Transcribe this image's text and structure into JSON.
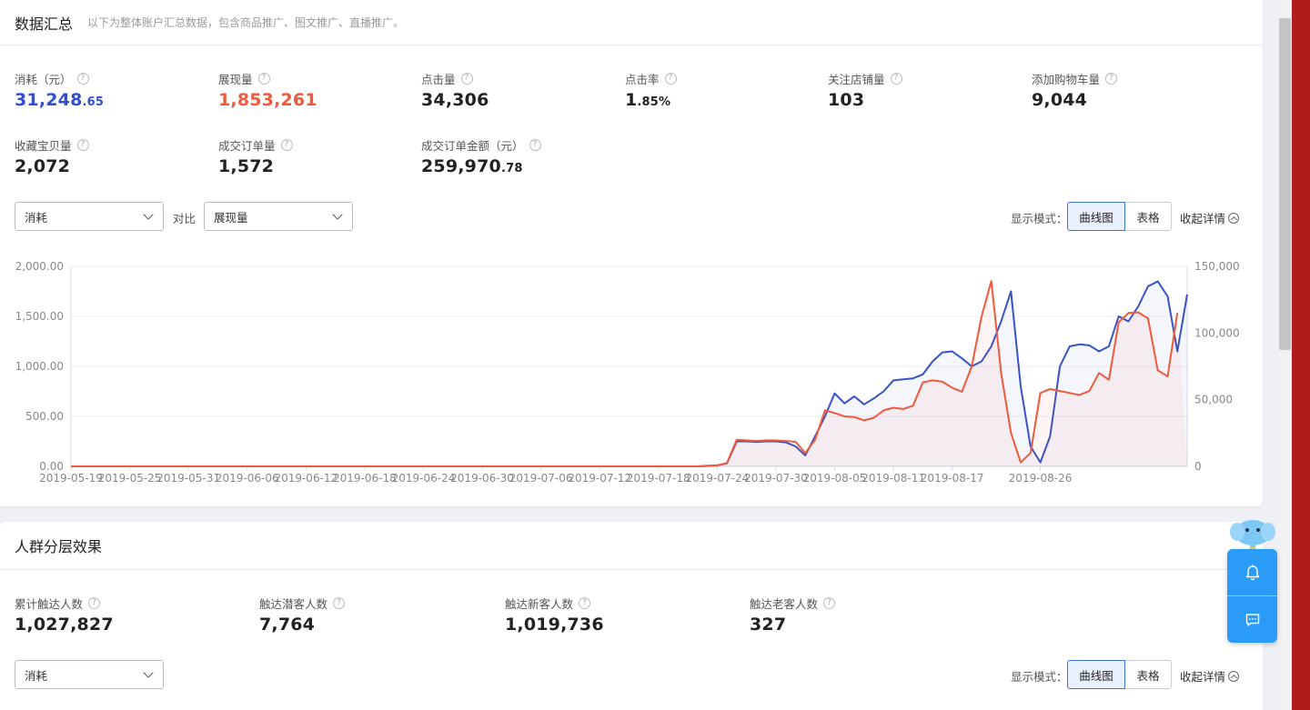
{
  "summary": {
    "title": "数据汇总",
    "subtitle": "以下为整体账户汇总数据，包含商品推广、图文推广、直播推广。",
    "metrics": [
      {
        "label": "消耗（元）",
        "int": "31,248",
        "dec": ".65"
      },
      {
        "label": "展现量",
        "int": "1,853,261",
        "dec": ""
      },
      {
        "label": "点击量",
        "int": "34,306",
        "dec": ""
      },
      {
        "label": "点击率",
        "int": "1",
        "dec": ".85%"
      },
      {
        "label": "关注店铺量",
        "int": "103",
        "dec": ""
      },
      {
        "label": "添加购物车量",
        "int": "9,044",
        "dec": ""
      },
      {
        "label": "收藏宝贝量",
        "int": "2,072",
        "dec": ""
      },
      {
        "label": "成交订单量",
        "int": "1,572",
        "dec": ""
      },
      {
        "label": "成交订单金额（元）",
        "int": "259,970",
        "dec": ".78"
      }
    ],
    "select_primary": "消耗",
    "vs_label": "对比",
    "select_compare": "展现量",
    "mode_label": "显示模式：",
    "mode_curve": "曲线图",
    "mode_table": "表格",
    "collapse_label": "收起详情"
  },
  "chart_data": {
    "type": "line",
    "x_ticks": [
      "2019-05-19",
      "2019-05-25",
      "2019-05-31",
      "2019-06-06",
      "2019-06-12",
      "2019-06-18",
      "2019-06-24",
      "2019-06-30",
      "2019-07-06",
      "2019-07-12",
      "2019-07-18",
      "2019-07-24",
      "2019-07-30",
      "2019-08-05",
      "2019-08-11",
      "2019-08-17",
      "2019-08-26"
    ],
    "y_left_ticks": [
      "2,000.00",
      "1,500.00",
      "1,000.00",
      "500.00",
      "0.00"
    ],
    "y_right_ticks": [
      "150,000",
      "100,000",
      "50,000",
      "0"
    ],
    "ylim_left": [
      0,
      2000
    ],
    "ylim_right": [
      0,
      150000
    ],
    "grid": true,
    "start_date": "2019-05-19",
    "series": [
      {
        "name": "消耗",
        "axis": "left",
        "color": "#3553c8",
        "values": [
          0,
          0,
          0,
          0,
          0,
          0,
          0,
          0,
          0,
          0,
          0,
          0,
          0,
          0,
          0,
          0,
          0,
          0,
          0,
          0,
          0,
          0,
          0,
          0,
          0,
          0,
          0,
          0,
          0,
          0,
          0,
          0,
          0,
          0,
          0,
          0,
          0,
          0,
          0,
          0,
          0,
          0,
          0,
          0,
          0,
          0,
          0,
          0,
          0,
          0,
          0,
          0,
          0,
          0,
          0,
          0,
          0,
          0,
          0,
          0,
          0,
          0,
          0,
          0,
          0,
          5,
          10,
          30,
          250,
          250,
          245,
          250,
          250,
          240,
          200,
          110,
          300,
          500,
          730,
          630,
          700,
          620,
          680,
          750,
          860,
          870,
          880,
          920,
          1050,
          1140,
          1150,
          1080,
          1000,
          1050,
          1200,
          1450,
          1750,
          800,
          200,
          40,
          300,
          1000,
          1200,
          1220,
          1210,
          1150,
          1200,
          1500,
          1450,
          1600,
          1800,
          1850,
          1700,
          1150,
          1720
        ]
      },
      {
        "name": "展现量",
        "axis": "right",
        "color": "#ee5a3c",
        "values": [
          0,
          0,
          0,
          0,
          0,
          0,
          0,
          0,
          0,
          0,
          0,
          0,
          0,
          0,
          0,
          0,
          0,
          0,
          0,
          0,
          0,
          0,
          0,
          0,
          0,
          0,
          0,
          0,
          0,
          0,
          0,
          0,
          0,
          0,
          0,
          0,
          0,
          0,
          0,
          0,
          0,
          0,
          0,
          0,
          0,
          0,
          0,
          0,
          0,
          0,
          0,
          0,
          0,
          0,
          0,
          0,
          0,
          0,
          0,
          0,
          0,
          0,
          0,
          0,
          0,
          300,
          700,
          2500,
          20000,
          19500,
          19000,
          19500,
          19500,
          19000,
          18500,
          10000,
          20000,
          42000,
          40000,
          37500,
          37000,
          34500,
          36500,
          42000,
          44000,
          43000,
          45500,
          63000,
          64500,
          63500,
          59000,
          56000,
          75000,
          112500,
          139000,
          70000,
          25000,
          3000,
          10000,
          55000,
          58000,
          56500,
          55000,
          53500,
          56500,
          70000,
          65000,
          108000,
          115000,
          115500,
          111000,
          72000,
          67500,
          115000
        ]
      }
    ]
  },
  "segments": {
    "title": "人群分层效果",
    "metrics": [
      {
        "label": "累计触达人数",
        "value": "1,027,827"
      },
      {
        "label": "触达潜客人数",
        "value": "7,764"
      },
      {
        "label": "触达新客人数",
        "value": "1,019,736"
      },
      {
        "label": "触达老客人数",
        "value": "327"
      }
    ],
    "select_primary": "消耗",
    "mode_label": "显示模式：",
    "mode_curve": "曲线图",
    "mode_table": "表格",
    "collapse_label": "收起详情"
  },
  "icons": {
    "help": "question-mark-icon",
    "bell": "bell-icon",
    "chat": "chat-icon",
    "chevron": "chevron-down-icon"
  },
  "colors": {
    "blue_series": "#3553c8",
    "red_series": "#ee5a3c",
    "float_panel": "#2a9cf8"
  }
}
